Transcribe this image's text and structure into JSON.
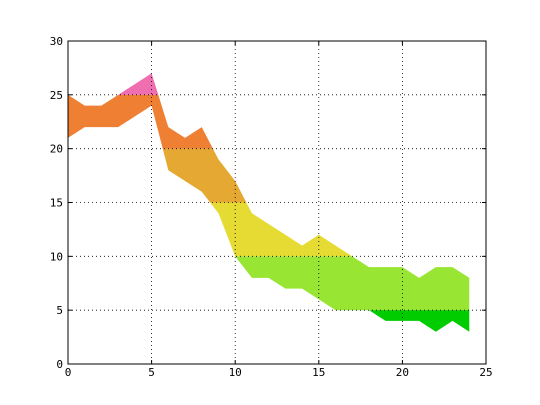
{
  "chart_data": {
    "type": "fill_between",
    "x": [
      0,
      1,
      2,
      3,
      4,
      5,
      6,
      7,
      8,
      9,
      10,
      11,
      12,
      13,
      14,
      15,
      16,
      17,
      18,
      19,
      20,
      21,
      22,
      23,
      24
    ],
    "upper": [
      25,
      24,
      24,
      25,
      26,
      27,
      22,
      21,
      22,
      19,
      17,
      14,
      13,
      12,
      11,
      12,
      11,
      10,
      9,
      9,
      9,
      8,
      9,
      9,
      8
    ],
    "lower": [
      21,
      22,
      22,
      22,
      23,
      24,
      18,
      17,
      16,
      14,
      10,
      8,
      8,
      7,
      7,
      6,
      5,
      5,
      5,
      4,
      4,
      4,
      3,
      4,
      3
    ],
    "color_bands": [
      {
        "from": 0,
        "to": 5,
        "color": "#00cc00"
      },
      {
        "from": 5,
        "to": 10,
        "color": "#99e533"
      },
      {
        "from": 10,
        "to": 15,
        "color": "#e5db33"
      },
      {
        "from": 15,
        "to": 20,
        "color": "#e5a833"
      },
      {
        "from": 20,
        "to": 25,
        "color": "#ef8033"
      },
      {
        "from": 25,
        "to": 30,
        "color": "#ef6eb0"
      }
    ],
    "xlim": [
      0,
      25
    ],
    "ylim": [
      0,
      30
    ],
    "xticks": [
      0,
      5,
      10,
      15,
      20,
      25
    ],
    "yticks": [
      0,
      5,
      10,
      15,
      20,
      25,
      30
    ],
    "grid": true
  }
}
